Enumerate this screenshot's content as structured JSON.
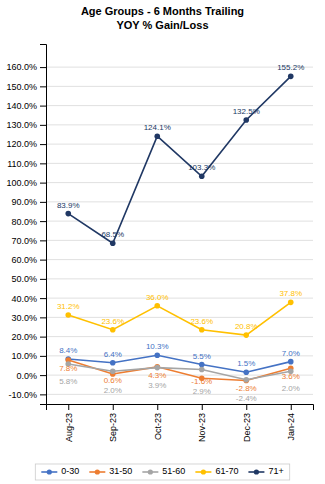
{
  "chart_data": {
    "type": "line",
    "title": "Age Groups - 6 Months Trailing",
    "subtitle": "YOY % Gain/Loss",
    "categories": [
      "Aug-23",
      "Sep-23",
      "Oct-23",
      "Nov-23",
      "Dec-23",
      "Jan-24"
    ],
    "series": [
      {
        "name": "0-30",
        "color": "#4472c4",
        "values": [
          8.4,
          6.4,
          10.3,
          5.5,
          1.5,
          7.0
        ],
        "value_labels": [
          "8.4%",
          "6.4%",
          "10.3%",
          "5.5%",
          "1.5%",
          "7.0%"
        ]
      },
      {
        "name": "31-50",
        "color": "#ed7d31",
        "values": [
          7.8,
          0.6,
          4.3,
          -1.6,
          -2.8,
          3.6
        ],
        "value_labels": [
          "7.8%",
          "0.6%",
          "4.3%",
          "-1.6%",
          "-2.8%",
          "3.6%"
        ]
      },
      {
        "name": "51-60",
        "color": "#a5a5a5",
        "values": [
          5.8,
          2.0,
          3.9,
          2.9,
          -2.4,
          2.0
        ],
        "value_labels": [
          "5.8%",
          "2.0%",
          "3.9%",
          "2.9%",
          "-2.4%",
          "2.0%"
        ]
      },
      {
        "name": "61-70",
        "color": "#ffc000",
        "values": [
          31.2,
          23.6,
          36.0,
          23.6,
          20.8,
          37.8
        ],
        "value_labels": [
          "31.2%",
          "23.6%",
          "36.0%",
          "23.6%",
          "20.8%",
          "37.8%"
        ]
      },
      {
        "name": "71+",
        "color": "#203864",
        "values": [
          83.9,
          68.5,
          124.1,
          103.3,
          132.5,
          155.2
        ],
        "value_labels": [
          "83.9%",
          "68.5%",
          "124.1%",
          "103.3%",
          "132.5%",
          "155.2%"
        ]
      }
    ],
    "ylim": [
      -15,
      172
    ],
    "yticks": [
      {
        "value": -10.0,
        "label": "-10.0%"
      },
      {
        "value": 0.0,
        "label": "0.0%"
      },
      {
        "value": 10.0,
        "label": "10.0%"
      },
      {
        "value": 20.0,
        "label": "20.0%"
      },
      {
        "value": 30.0,
        "label": "30.0%"
      },
      {
        "value": 40.0,
        "label": "40.0%"
      },
      {
        "value": 50.0,
        "label": "50.0%"
      },
      {
        "value": 60.0,
        "label": "60.0%"
      },
      {
        "value": 70.0,
        "label": "70.0%"
      },
      {
        "value": 80.0,
        "label": "80.0%"
      },
      {
        "value": 90.0,
        "label": "90.0%"
      },
      {
        "value": 100.0,
        "label": "100.0%"
      },
      {
        "value": 110.0,
        "label": "110.0%"
      },
      {
        "value": 120.0,
        "label": "120.0%"
      },
      {
        "value": 130.0,
        "label": "130.0%"
      },
      {
        "value": 140.0,
        "label": "140.0%"
      },
      {
        "value": 150.0,
        "label": "150.0%"
      },
      {
        "value": 160.0,
        "label": "160.0%"
      }
    ],
    "grid": true,
    "legend": "bottom",
    "marker": "circle",
    "data_labels": true
  }
}
